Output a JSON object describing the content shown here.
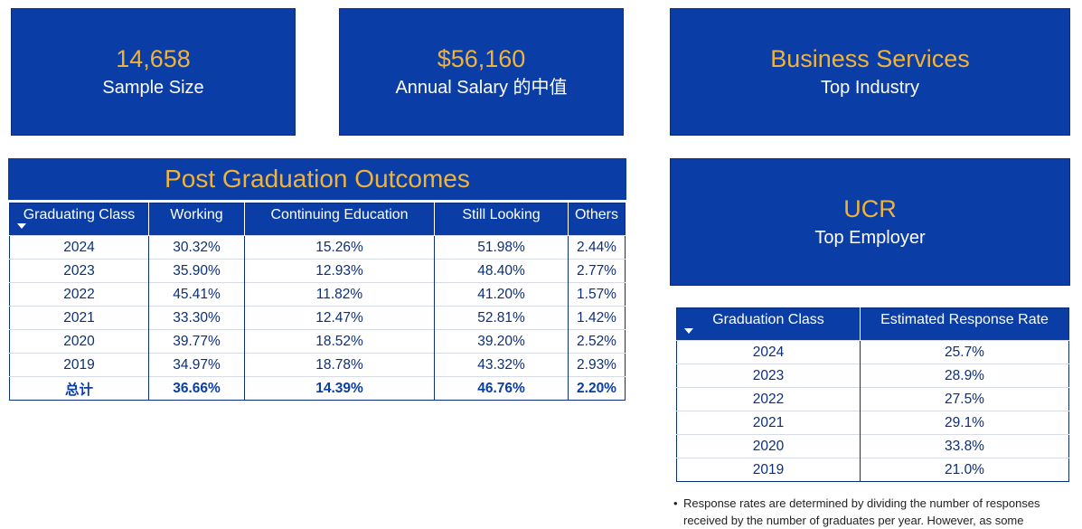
{
  "kpis": {
    "sample_size": {
      "value": "14,658",
      "label": "Sample Size"
    },
    "salary": {
      "value": "$56,160",
      "label": "Annual Salary 的中值"
    },
    "industry": {
      "value": "Business Services",
      "label": "Top Industry"
    },
    "employer": {
      "value": "UCR",
      "label": "Top Employer"
    }
  },
  "outcomes": {
    "title": "Post Graduation Outcomes",
    "headers": [
      "Graduating Class",
      "Working",
      "Continuing Education",
      "Still Looking",
      "Others"
    ],
    "rows": [
      [
        "2024",
        "30.32%",
        "15.26%",
        "51.98%",
        "2.44%"
      ],
      [
        "2023",
        "35.90%",
        "12.93%",
        "48.40%",
        "2.77%"
      ],
      [
        "2022",
        "45.41%",
        "11.82%",
        "41.20%",
        "1.57%"
      ],
      [
        "2021",
        "33.30%",
        "12.47%",
        "52.81%",
        "1.42%"
      ],
      [
        "2020",
        "39.77%",
        "18.52%",
        "39.20%",
        "2.52%"
      ],
      [
        "2019",
        "34.97%",
        "18.78%",
        "43.32%",
        "2.93%"
      ]
    ],
    "total": [
      "总计",
      "36.66%",
      "14.39%",
      "46.76%",
      "2.20%"
    ]
  },
  "response": {
    "headers": [
      "Graduation Class",
      "Estimated Response Rate"
    ],
    "rows": [
      [
        "2024",
        "25.7%"
      ],
      [
        "2023",
        "28.9%"
      ],
      [
        "2022",
        "27.5%"
      ],
      [
        "2021",
        "29.1%"
      ],
      [
        "2020",
        "33.8%"
      ],
      [
        "2019",
        "21.0%"
      ]
    ]
  },
  "note": {
    "bullet": "•",
    "text": "Response rates are determined by dividing the number of responses received by the number of graduates per year. However, as some"
  }
}
